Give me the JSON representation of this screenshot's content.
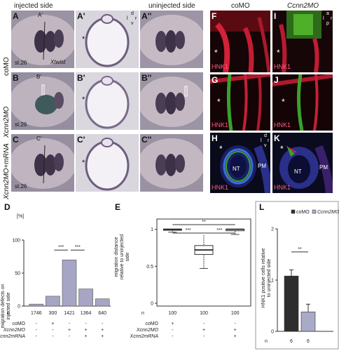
{
  "figure": {
    "col_headers": {
      "injected": "injected side",
      "uninjected": "uninjected side"
    },
    "row_labels": [
      "coMO",
      "Xcnn2MO",
      "Xcnn2MO+mRNA"
    ],
    "stage_label": "st.26",
    "gene_label": "Xtwist",
    "panels_left": [
      "A",
      "A'",
      "A''",
      "B",
      "B'",
      "B''",
      "C",
      "C'",
      "C''"
    ],
    "tile_markers": {
      "a_prime": "A'",
      "b_prime": "B'",
      "c_prime": "C'"
    },
    "orientation_transverse": {
      "top": "d",
      "left": "l",
      "right": "r",
      "bottom": "v"
    },
    "orientation_lateral": {
      "top": "a",
      "left": "l",
      "right": "r",
      "bottom": "p"
    },
    "orientation_section": {
      "top": "d",
      "left": "l",
      "right": "r",
      "bottom": "v"
    },
    "asterisk": "*",
    "right_col_headers": {
      "co": "coMO",
      "cnn": "Ccnn2MO"
    },
    "panels_right": [
      "F",
      "G",
      "H",
      "I",
      "J",
      "K"
    ],
    "hnk1_label": "HNK1",
    "nt_label": "NT",
    "pm_label": "PM",
    "panel_D": "D",
    "panel_E": "E",
    "panel_L": "L"
  },
  "chart_data": [
    {
      "type": "bar",
      "panel": "D",
      "ylabel": "migration defects on injected side",
      "yunit": "[%]",
      "ylim": [
        0,
        100
      ],
      "yticks": [
        "0",
        "50",
        "100"
      ],
      "categories": [
        "1746",
        "300",
        "1421",
        "1364",
        "640"
      ],
      "values": [
        3,
        15,
        70,
        26,
        11
      ],
      "n_label": "n",
      "significance": [
        "***",
        "***"
      ],
      "conditions": [
        {
          "name": "coMO",
          "marks": [
            "",
            "+",
            "",
            "",
            ""
          ]
        },
        {
          "name": "Xcnn2MO",
          "marks": [
            "",
            "",
            "+",
            "+",
            "+"
          ]
        },
        {
          "name": "Xcnn2mRNA",
          "marks": [
            "",
            "",
            "",
            "+",
            "+"
          ]
        }
      ]
    },
    {
      "type": "box",
      "panel": "E",
      "ylabel": "migration distance relative to uninjected side",
      "ylim": [
        0,
        1
      ],
      "yticks": [
        "0",
        "0.5",
        "1"
      ],
      "categories": [
        "100",
        "100",
        "100"
      ],
      "n_label": "n",
      "boxes": [
        {
          "median": 1.0,
          "q1": 0.99,
          "q3": 1.0,
          "whisker_low": 0.96,
          "whisker_high": 1.0
        },
        {
          "median": 0.72,
          "q1": 0.66,
          "q3": 0.78,
          "whisker_low": 0.47,
          "whisker_high": 0.92
        },
        {
          "median": 1.0,
          "q1": 0.98,
          "q3": 1.0,
          "whisker_low": 0.93,
          "whisker_high": 1.0
        }
      ],
      "significance": [
        "**",
        "***",
        "***"
      ],
      "conditions": [
        {
          "name": "coMO",
          "marks": [
            "+",
            "",
            ""
          ]
        },
        {
          "name": "Xcnn2MO",
          "marks": [
            "",
            "+",
            "+"
          ]
        },
        {
          "name": "Xcnn2mRNA",
          "marks": [
            "",
            "",
            "+"
          ]
        }
      ]
    },
    {
      "type": "bar",
      "panel": "L",
      "ylabel": "HNK1 positive cells relative to uninjected side",
      "ylim": [
        0,
        2
      ],
      "yticks": [
        "0",
        "1",
        "2"
      ],
      "categories": [
        "6",
        "6"
      ],
      "values": [
        1.08,
        0.38
      ],
      "errors": [
        0.12,
        0.15
      ],
      "n_label": "n",
      "legend": [
        "coMO",
        "Ccnn2MO"
      ],
      "colors": [
        "#2e2e2e",
        "#a9a9c8"
      ],
      "significance": [
        "**"
      ]
    }
  ]
}
